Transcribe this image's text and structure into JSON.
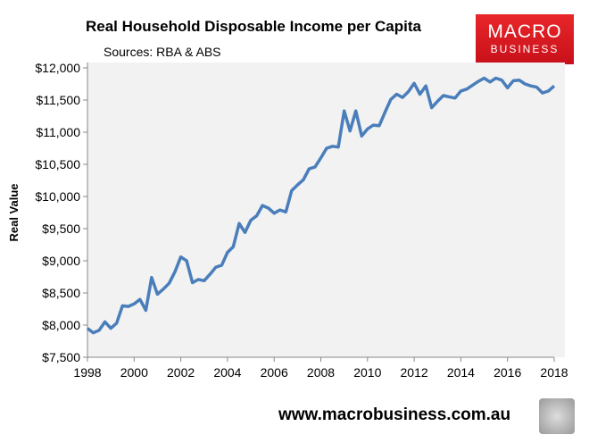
{
  "chart_data": {
    "type": "line",
    "title": "Real Household Disposable Income per Capita",
    "subtitle": "Sources: RBA & ABS",
    "xlabel": "",
    "ylabel": "Real Value",
    "xlim": [
      1998,
      2018
    ],
    "ylim": [
      7500,
      12000
    ],
    "grid": false,
    "x_ticks": [
      "1998",
      "2000",
      "2002",
      "2004",
      "2006",
      "2008",
      "2010",
      "2012",
      "2014",
      "2016",
      "2018"
    ],
    "y_ticks": [
      "$7,500",
      "$8,000",
      "$8,500",
      "$9,000",
      "$9,500",
      "$10,000",
      "$10,500",
      "$11,000",
      "$11,500",
      "$12,000"
    ],
    "line_color": "#4a7ebb",
    "background": "#f2f2f2",
    "series": [
      {
        "x": [
          1998,
          1998.25,
          1998.5,
          1998.75,
          1999,
          1999.25,
          1999.5,
          1999.75,
          2000,
          2000.25,
          2000.5,
          2000.75,
          2001,
          2001.25,
          2001.5,
          2001.75,
          2002,
          2002.25,
          2002.5,
          2002.75,
          2003,
          2003.25,
          2003.5,
          2003.75,
          2004,
          2004.25,
          2004.5,
          2004.75,
          2005,
          2005.25,
          2005.5,
          2005.75,
          2006,
          2006.25,
          2006.5,
          2006.75,
          2007,
          2007.25,
          2007.5,
          2007.75,
          2008,
          2008.25,
          2008.5,
          2008.75,
          2009,
          2009.25,
          2009.5,
          2009.75,
          2010,
          2010.25,
          2010.5,
          2010.75,
          2011,
          2011.25,
          2011.5,
          2011.75,
          2012,
          2012.25,
          2012.5,
          2012.75,
          2013,
          2013.25,
          2013.5,
          2013.75,
          2014,
          2014.25,
          2014.5,
          2014.75,
          2015,
          2015.25,
          2015.5,
          2015.75,
          2016,
          2016.25,
          2016.5,
          2016.75,
          2017,
          2017.25,
          2017.5,
          2017.75,
          2018
        ],
        "values": [
          7950,
          7880,
          7920,
          8050,
          7950,
          8030,
          8300,
          8290,
          8330,
          8400,
          8230,
          8740,
          8480,
          8560,
          8650,
          8830,
          9060,
          9000,
          8660,
          8710,
          8690,
          8790,
          8900,
          8930,
          9130,
          9220,
          9580,
          9440,
          9630,
          9700,
          9860,
          9820,
          9740,
          9790,
          9760,
          10090,
          10180,
          10260,
          10430,
          10460,
          10600,
          10750,
          10780,
          10770,
          11330,
          11020,
          11330,
          10940,
          11050,
          11110,
          11100,
          11310,
          11510,
          11590,
          11540,
          11630,
          11760,
          11590,
          11720,
          11380,
          11480,
          11570,
          11550,
          11530,
          11640,
          11670,
          11730,
          11790,
          11840,
          11780,
          11840,
          11810,
          11690,
          11800,
          11810,
          11750,
          11720,
          11700,
          11610,
          11640,
          11720
        ]
      }
    ]
  },
  "logo": {
    "line1": "MACRO",
    "line2": "BUSINESS"
  },
  "footer": {
    "url": "www.macrobusiness.com.au"
  }
}
